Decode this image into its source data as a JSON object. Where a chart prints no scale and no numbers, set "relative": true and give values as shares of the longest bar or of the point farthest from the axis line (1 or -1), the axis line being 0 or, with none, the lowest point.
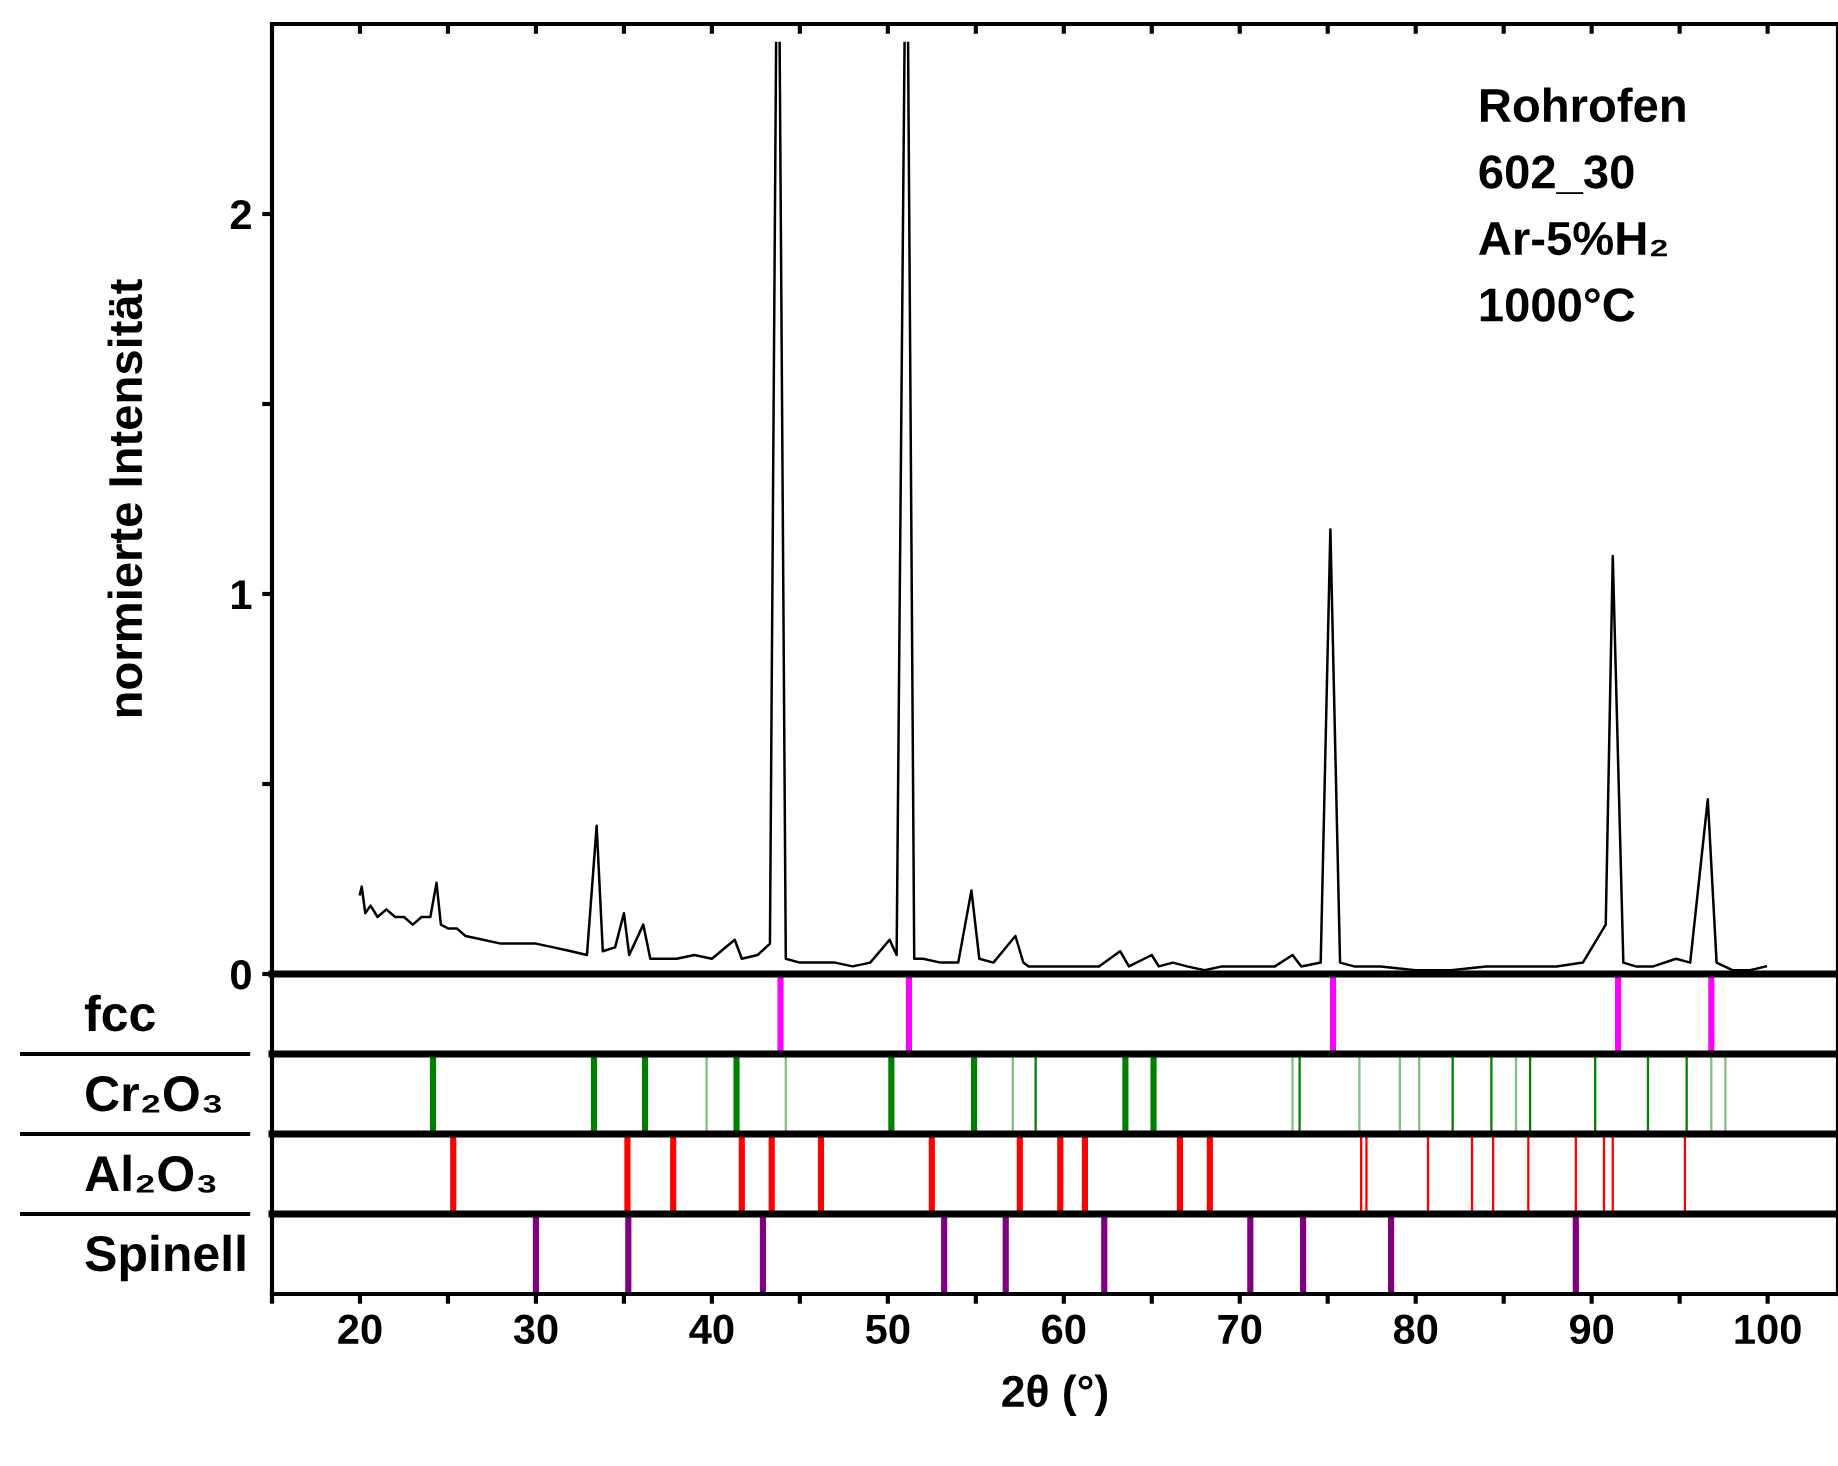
{
  "chart_data": [
    {
      "type": "line",
      "ylabel": "normierte Intensität",
      "annotations": [
        "Rohrofen",
        "602_30",
        "Ar-5%H₂",
        "1000°C"
      ],
      "xlim": [
        15,
        104
      ],
      "ylim": [
        0,
        2.5
      ],
      "yticks": [
        0,
        {
          "value": 0.5,
          "label": null
        },
        1,
        {
          "value": 1.5,
          "label": null
        },
        2
      ],
      "xticks": [
        {
          "value": 20,
          "label": null
        },
        {
          "value": 25,
          "label": null
        },
        {
          "value": 30,
          "label": null
        },
        {
          "value": 35,
          "label": null
        },
        {
          "value": 40,
          "label": null
        },
        {
          "value": 45,
          "label": null
        },
        {
          "value": 50,
          "label": null
        },
        {
          "value": 55,
          "label": null
        },
        {
          "value": 60,
          "label": null
        },
        {
          "value": 65,
          "label": null
        },
        {
          "value": 70,
          "label": null
        },
        {
          "value": 75,
          "label": null
        },
        {
          "value": 80,
          "label": null
        },
        {
          "value": 85,
          "label": null
        },
        {
          "value": 90,
          "label": null
        },
        {
          "value": 95,
          "label": null
        },
        {
          "value": 100,
          "label": null
        }
      ],
      "tick_labels": "y",
      "grid": false,
      "series": [
        {
          "color": "#000000",
          "x": [
            20.0,
            20.1,
            20.3,
            20.6,
            21.0,
            21.5,
            22.0,
            22.5,
            23.0,
            23.5,
            24.0,
            24.35,
            24.6,
            25.0,
            25.5,
            26,
            27,
            28,
            29,
            30,
            31,
            32,
            32.9,
            33.45,
            33.8,
            34.5,
            35.0,
            35.3,
            36.1,
            36.5,
            37,
            38,
            39,
            40,
            41.3,
            41.7,
            42.6,
            43.3,
            43.65,
            43.75,
            43.85,
            44.2,
            45,
            46,
            47,
            48,
            49,
            50.1,
            50.5,
            50.95,
            51.05,
            51.15,
            51.5,
            52,
            53,
            54,
            54.75,
            55.2,
            56,
            57.25,
            57.7,
            58,
            60,
            61,
            62,
            63.2,
            63.7,
            65.0,
            65.4,
            66.2,
            67,
            68,
            69,
            70,
            71,
            72,
            73.0,
            73.5,
            74.6,
            75.15,
            75.7,
            76.5,
            78,
            80,
            82,
            84,
            86,
            88,
            89.5,
            90.8,
            91.2,
            91.8,
            92.5,
            93.5,
            94.8,
            95.6,
            96.6,
            97.1,
            98,
            99,
            99.9
          ],
          "values": [
            0.21,
            0.23,
            0.16,
            0.18,
            0.15,
            0.17,
            0.15,
            0.15,
            0.13,
            0.15,
            0.15,
            0.24,
            0.13,
            0.12,
            0.12,
            0.1,
            0.09,
            0.08,
            0.08,
            0.08,
            0.07,
            0.06,
            0.05,
            0.39,
            0.06,
            0.07,
            0.16,
            0.05,
            0.13,
            0.04,
            0.04,
            0.04,
            0.05,
            0.04,
            0.09,
            0.04,
            0.05,
            0.08,
            2.45,
            null,
            2.45,
            0.04,
            0.03,
            0.03,
            0.03,
            0.02,
            0.03,
            0.09,
            0.05,
            2.45,
            null,
            2.45,
            0.04,
            0.04,
            0.03,
            0.03,
            0.22,
            0.04,
            0.03,
            0.1,
            0.03,
            0.02,
            0.02,
            0.02,
            0.02,
            0.06,
            0.02,
            0.05,
            0.02,
            0.03,
            0.02,
            0.01,
            0.02,
            0.02,
            0.02,
            0.02,
            0.05,
            0.02,
            0.03,
            1.17,
            0.03,
            0.02,
            0.02,
            0.01,
            0.01,
            0.02,
            0.02,
            0.02,
            0.03,
            0.13,
            1.1,
            0.03,
            0.02,
            0.02,
            0.04,
            0.03,
            0.46,
            0.03,
            0.01,
            0.01,
            0.02
          ]
        }
      ]
    },
    {
      "type": "bar",
      "ylabel": "fcc",
      "relative": true,
      "xlim": [
        15,
        104
      ],
      "tick_labels": false,
      "series": [
        {
          "color": "#ff00ff",
          "x": [
            43.9,
            51.2,
            75.3,
            91.5,
            96.8
          ],
          "values": [
            1,
            1,
            1,
            1,
            1
          ]
        }
      ]
    },
    {
      "type": "bar",
      "ylabel": "Cr₂O₃",
      "relative": true,
      "xlim": [
        15,
        104
      ],
      "tick_labels": false,
      "series": [
        {
          "color": "#008000",
          "x": [
            24.15,
            33.3,
            36.2,
            41.4,
            50.2,
            54.9,
            63.5,
            65.1
          ],
          "values": [
            1,
            1,
            1,
            1,
            1,
            1,
            1,
            1
          ]
        },
        {
          "color": "#008000",
          "x": [
            58.4,
            73.4,
            82.1,
            84.3,
            86.5,
            90.2,
            93.2,
            95.4
          ],
          "values": [
            1,
            1,
            1,
            1,
            1,
            1,
            1,
            1
          ]
        },
        {
          "color": "#80c080",
          "x": [
            39.7,
            44.2,
            57.1,
            73.0,
            76.8,
            79.1,
            80.2,
            85.7,
            96.8,
            97.6
          ],
          "values": [
            1,
            1,
            1,
            1,
            1,
            1,
            1,
            1,
            1,
            1
          ]
        }
      ]
    },
    {
      "type": "bar",
      "ylabel": "Al₂O₃",
      "relative": true,
      "xlim": [
        15,
        104
      ],
      "tick_labels": false,
      "series": [
        {
          "color": "#ff0000",
          "x": [
            25.3,
            35.2,
            37.8,
            41.7,
            43.4,
            46.2,
            52.5,
            57.5,
            59.8,
            61.2,
            66.6,
            68.3
          ],
          "values": [
            1,
            1,
            1,
            1,
            1,
            1,
            1,
            1,
            1,
            1,
            1,
            1
          ]
        },
        {
          "color": "#ff0000",
          "x": [
            76.9,
            77.2,
            80.7,
            83.2,
            84.4,
            86.4,
            89.1,
            90.7,
            91.2,
            95.3
          ],
          "values": [
            1,
            1,
            1,
            1,
            1,
            1,
            1,
            1,
            1,
            1
          ]
        }
      ]
    },
    {
      "type": "bar",
      "ylabel": "Spinell",
      "xlabel": "2θ (°)",
      "relative": true,
      "xlim": [
        15,
        104
      ],
      "tick_labels": "x",
      "xticks": [
        {
          "value": 15,
          "label": null
        },
        20,
        {
          "value": 25,
          "label": null
        },
        30,
        {
          "value": 35,
          "label": null
        },
        40,
        {
          "value": 45,
          "label": null
        },
        50,
        {
          "value": 55,
          "label": null
        },
        60,
        {
          "value": 65,
          "label": null
        },
        70,
        {
          "value": 75,
          "label": null
        },
        80,
        {
          "value": 85,
          "label": null
        },
        90,
        {
          "value": 95,
          "label": null
        },
        100
      ],
      "series": [
        {
          "color": "#800080",
          "x": [
            30.0,
            35.25,
            42.9,
            53.2,
            56.7,
            62.3,
            70.6,
            73.6,
            78.6,
            89.1
          ],
          "values": [
            1,
            1,
            1,
            1,
            1,
            1,
            1,
            1,
            1,
            1
          ]
        }
      ]
    }
  ]
}
